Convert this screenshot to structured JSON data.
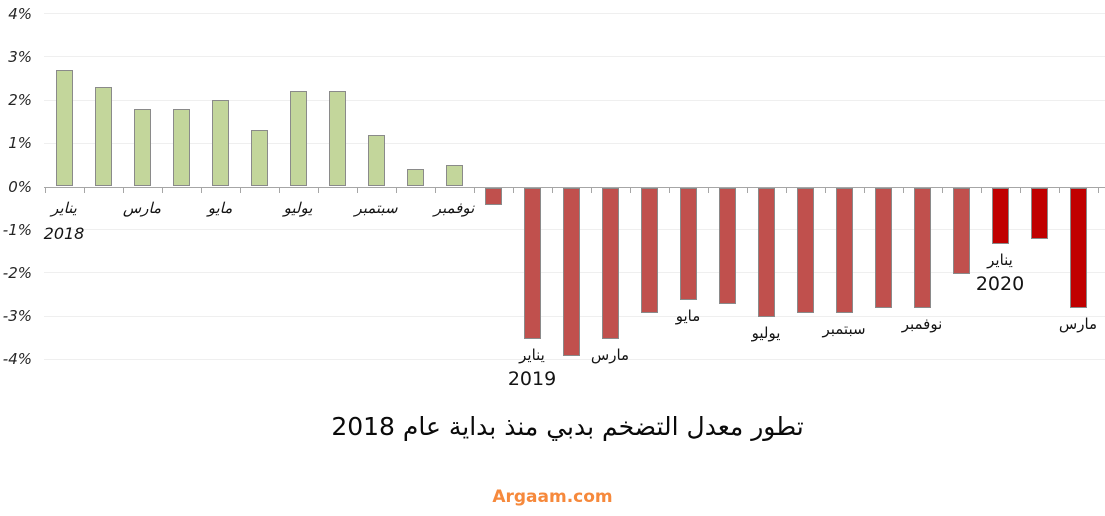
{
  "chart_data": {
    "type": "bar",
    "title": "تطور معدل التضخم بدبي منذ بداية عام 2018",
    "source": "Argaam.com",
    "xlabel": "",
    "ylabel": "",
    "ylim": [
      -4,
      4
    ],
    "grid": true,
    "legend_position": "none",
    "y_tick_labels": [
      "4%",
      "3%",
      "2%",
      "1%",
      "0%",
      "-1%",
      "-2%",
      "-3%",
      "-4%"
    ],
    "y_tick_values": [
      4,
      3,
      2,
      1,
      0,
      -1,
      -2,
      -3,
      -4
    ],
    "colors": {
      "green": "#C3D69B",
      "red": "#C0504D",
      "bright_red": "#C00000"
    },
    "bar_border_color": "#8A8A8A",
    "source_color": "#F6893C",
    "points": [
      {
        "label": "يناير",
        "year": "2018",
        "value": 2.7,
        "color": "green"
      },
      {
        "label": "",
        "value": 2.3,
        "color": "green"
      },
      {
        "label": "مارس",
        "value": 1.8,
        "color": "green"
      },
      {
        "label": "",
        "value": 1.8,
        "color": "green"
      },
      {
        "label": "مايو",
        "value": 2.0,
        "color": "green"
      },
      {
        "label": "",
        "value": 1.3,
        "color": "green"
      },
      {
        "label": "يوليو",
        "value": 2.2,
        "color": "green"
      },
      {
        "label": "",
        "value": 2.2,
        "color": "green"
      },
      {
        "label": "سبتمبر",
        "value": 1.2,
        "color": "green"
      },
      {
        "label": "",
        "value": 0.4,
        "color": "green"
      },
      {
        "label": "نوفمبر",
        "value": 0.5,
        "color": "green"
      },
      {
        "label": "",
        "value": -0.4,
        "color": "red"
      },
      {
        "label": "يناير",
        "year": "2019",
        "value": -3.5,
        "color": "red"
      },
      {
        "label": "",
        "value": -3.9,
        "color": "red"
      },
      {
        "label": "مارس",
        "value": -3.5,
        "color": "red"
      },
      {
        "label": "",
        "value": -2.9,
        "color": "red"
      },
      {
        "label": "مايو",
        "value": -2.6,
        "color": "red"
      },
      {
        "label": "",
        "value": -2.7,
        "color": "red"
      },
      {
        "label": "يوليو",
        "value": -3.0,
        "color": "red"
      },
      {
        "label": "",
        "value": -2.9,
        "color": "red"
      },
      {
        "label": "سبتمبر",
        "value": -2.9,
        "color": "red"
      },
      {
        "label": "",
        "value": -2.8,
        "color": "red"
      },
      {
        "label": "نوفمبر",
        "value": -2.8,
        "color": "red"
      },
      {
        "label": "",
        "value": -2.0,
        "color": "red"
      },
      {
        "label": "يناير",
        "year": "2020",
        "value": -1.3,
        "color": "bright_red"
      },
      {
        "label": "",
        "value": -1.2,
        "color": "bright_red"
      },
      {
        "label": "مارس",
        "value": -2.8,
        "color": "bright_red"
      }
    ]
  }
}
